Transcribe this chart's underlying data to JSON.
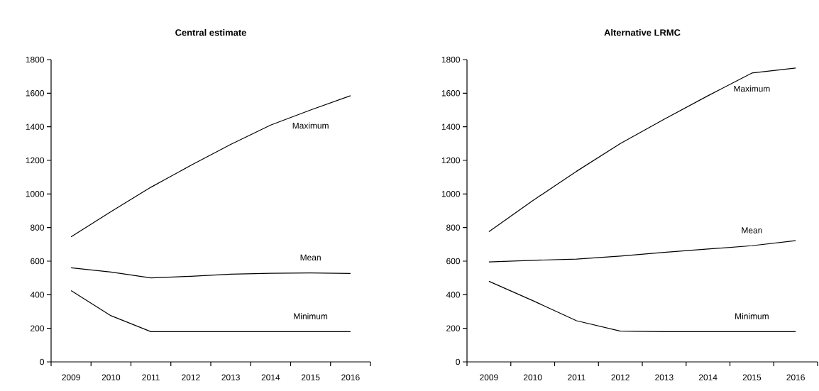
{
  "chart_data": [
    {
      "type": "line",
      "title": "Central estimate",
      "categories": [
        "2009",
        "2010",
        "2011",
        "2012",
        "2013",
        "2014",
        "2015",
        "2016"
      ],
      "ylim": [
        0,
        1800
      ],
      "yticks": [
        0,
        200,
        400,
        600,
        800,
        1000,
        1200,
        1400,
        1600,
        1800
      ],
      "series": [
        {
          "name": "Maximum",
          "color": "#000000",
          "values": [
            745,
            895,
            1040,
            1170,
            1295,
            1410,
            1500,
            1585
          ]
        },
        {
          "name": "Mean",
          "color": "#000000",
          "values": [
            560,
            535,
            500,
            510,
            522,
            528,
            530,
            527
          ]
        },
        {
          "name": "Minimum",
          "color": "#000000",
          "values": [
            425,
            275,
            180,
            180,
            180,
            180,
            180,
            180
          ]
        }
      ]
    },
    {
      "type": "line",
      "title": "Alternative LRMC",
      "categories": [
        "2009",
        "2010",
        "2011",
        "2012",
        "2013",
        "2014",
        "2015",
        "2016"
      ],
      "ylim": [
        0,
        1800
      ],
      "yticks": [
        0,
        200,
        400,
        600,
        800,
        1000,
        1200,
        1400,
        1600,
        1800
      ],
      "series": [
        {
          "name": "Maximum",
          "color": "#000000",
          "values": [
            775,
            960,
            1135,
            1300,
            1445,
            1585,
            1720,
            1750
          ]
        },
        {
          "name": "Mean",
          "color": "#000000",
          "values": [
            595,
            605,
            612,
            630,
            652,
            672,
            692,
            722
          ]
        },
        {
          "name": "Minimum",
          "color": "#000000",
          "values": [
            480,
            365,
            245,
            183,
            180,
            180,
            180,
            180
          ]
        }
      ]
    }
  ]
}
